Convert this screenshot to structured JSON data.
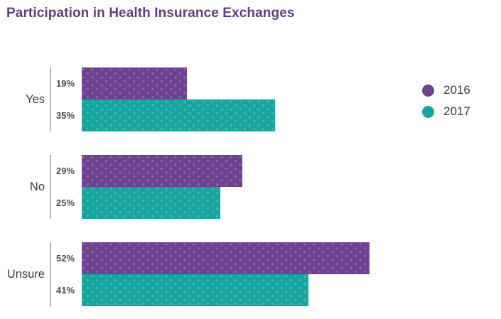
{
  "page": {
    "background": "#ffffff"
  },
  "chart_data": {
    "type": "bar",
    "orientation": "horizontal",
    "title": "Participation in Health Insurance Exchanges",
    "title_color": "#5f3d7e",
    "categories": [
      "Yes",
      "No",
      "Unsure"
    ],
    "series": [
      {
        "name": "2016",
        "color": "#6d4391",
        "values": [
          19,
          29,
          52
        ],
        "labels": [
          "19%",
          "29%",
          "52%"
        ]
      },
      {
        "name": "2017",
        "color": "#18a5a0",
        "values": [
          35,
          25,
          41
        ],
        "labels": [
          "35%",
          "25%",
          "41%"
        ]
      }
    ],
    "xlim": [
      0,
      60
    ],
    "grid": false,
    "legend_position": "right",
    "axis_line_color": "#b3b3b3",
    "value_label_color": "#4b4b4b",
    "category_label_color": "#3a3a3a"
  }
}
